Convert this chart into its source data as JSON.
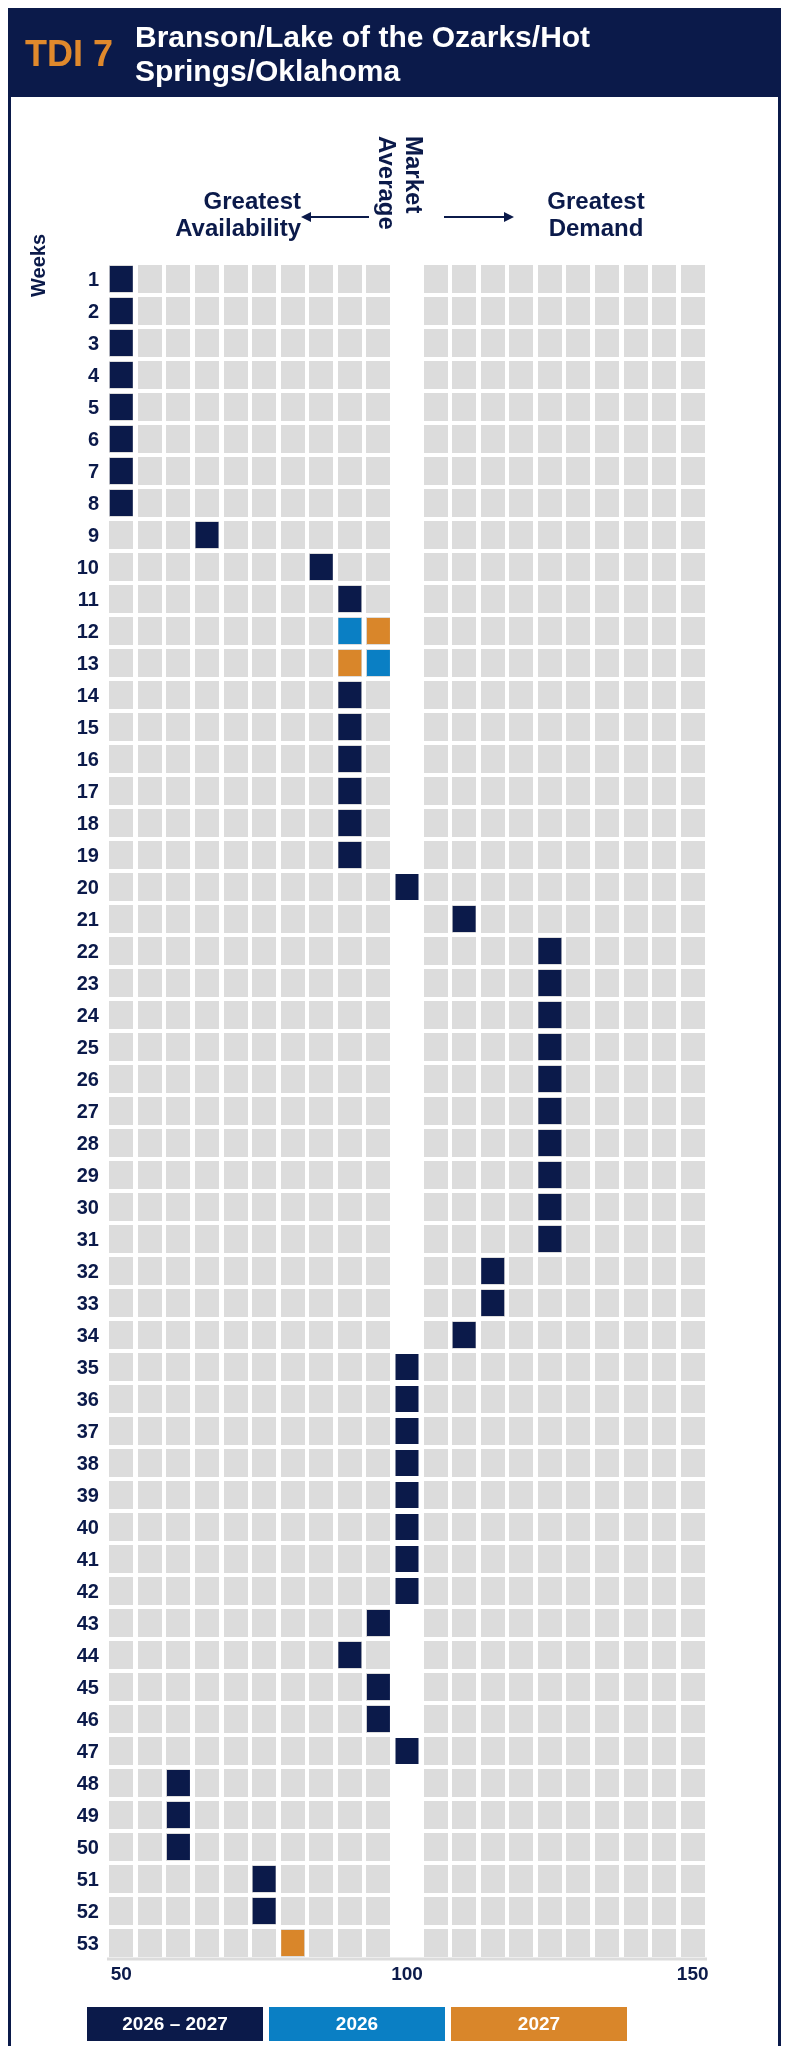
{
  "chart_data": {
    "type": "scatter",
    "title": "TDI 7",
    "subtitle": "Branson/Lake of the Ozarks/Hot Springs/Oklahoma",
    "ylabel": "Weeks",
    "orientation": "horizontal",
    "annotations": [
      "Greatest Availability",
      "Market Average",
      "Greatest Demand"
    ],
    "categories": [
      "1",
      "2",
      "3",
      "4",
      "5",
      "6",
      "7",
      "8",
      "9",
      "10",
      "11",
      "12",
      "13",
      "14",
      "15",
      "16",
      "17",
      "18",
      "19",
      "20",
      "21",
      "22",
      "23",
      "24",
      "25",
      "26",
      "27",
      "28",
      "29",
      "30",
      "31",
      "32",
      "33",
      "34",
      "35",
      "36",
      "37",
      "38",
      "39",
      "40",
      "41",
      "42",
      "43",
      "44",
      "45",
      "46",
      "47",
      "48",
      "49",
      "50",
      "51",
      "52",
      "53"
    ],
    "series": [
      {
        "name": "2026 – 2027",
        "color": "#0b1a4a",
        "values": [
          50,
          50,
          50,
          50,
          50,
          50,
          50,
          50,
          65,
          85,
          90,
          null,
          null,
          90,
          90,
          90,
          90,
          90,
          90,
          100,
          110,
          125,
          125,
          125,
          125,
          125,
          125,
          125,
          125,
          125,
          125,
          115,
          115,
          110,
          100,
          100,
          100,
          100,
          100,
          100,
          100,
          100,
          95,
          90,
          95,
          95,
          100,
          60,
          60,
          60,
          75,
          75,
          null
        ]
      },
      {
        "name": "2026",
        "color": "#0a7fc4",
        "values": [
          null,
          null,
          null,
          null,
          null,
          null,
          null,
          null,
          null,
          null,
          null,
          90,
          95,
          null,
          null,
          null,
          null,
          null,
          null,
          null,
          null,
          null,
          null,
          null,
          null,
          null,
          null,
          null,
          null,
          null,
          null,
          null,
          null,
          null,
          null,
          null,
          null,
          null,
          null,
          null,
          null,
          null,
          null,
          null,
          null,
          null,
          null,
          null,
          null,
          null,
          null,
          null,
          null
        ]
      },
      {
        "name": "2027",
        "color": "#d9862a",
        "values": [
          null,
          null,
          null,
          null,
          null,
          null,
          null,
          null,
          null,
          null,
          null,
          95,
          90,
          null,
          null,
          null,
          null,
          null,
          null,
          null,
          null,
          null,
          null,
          null,
          null,
          null,
          null,
          null,
          null,
          null,
          null,
          null,
          null,
          null,
          null,
          null,
          null,
          null,
          null,
          null,
          null,
          null,
          null,
          null,
          null,
          null,
          null,
          null,
          null,
          null,
          null,
          null,
          80
        ]
      }
    ],
    "xlim": [
      47.5,
      152.5
    ],
    "xticks": [
      50,
      100,
      150
    ],
    "marker": "square",
    "legend": "bottom",
    "grid": false
  }
}
